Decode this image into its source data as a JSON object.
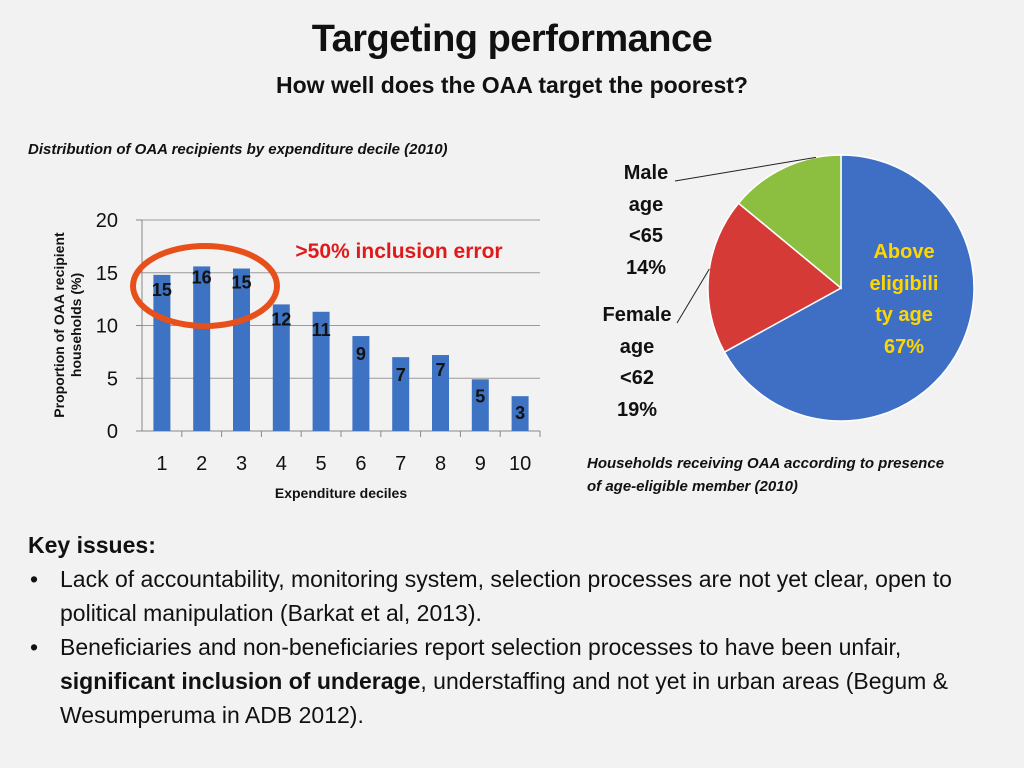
{
  "title": "Targeting performance",
  "subtitle": "How well does the OAA target the poorest?",
  "bar_caption": "Distribution of OAA recipients by expenditure  decile (2010)",
  "pie_caption_lines": [
    "Households receiving OAA according to presence",
    "of age-eligible member (2010)"
  ],
  "annotation": ">50% inclusion error",
  "colors": {
    "bar": "#3e72c2",
    "pie_blue": "#3f6fc4",
    "pie_red": "#d63a36",
    "pie_green": "#8cbf3f",
    "circle": "#e8501b",
    "annotation": "#e01a1a",
    "above_label": "#ffd700"
  },
  "chart_data": [
    {
      "type": "bar",
      "categories": [
        "1",
        "2",
        "3",
        "4",
        "5",
        "6",
        "7",
        "8",
        "9",
        "10"
      ],
      "values": [
        14.8,
        15.6,
        15.4,
        12.0,
        11.3,
        9.0,
        7.0,
        7.2,
        4.9,
        3.3
      ],
      "data_labels": [
        "15",
        "16",
        "15",
        "12",
        "11",
        "9",
        "7",
        "7",
        "5",
        "3"
      ],
      "xlabel": "Expenditure deciles",
      "ylabel_lines": [
        "Proportion of OAA recipient",
        "households (%)"
      ],
      "ylim": [
        0,
        20
      ],
      "yticks": [
        "0",
        "5",
        "10",
        "15",
        "20"
      ],
      "grid": true,
      "highlight_deciles": [
        "1",
        "2",
        "3"
      ]
    },
    {
      "type": "pie",
      "slices": [
        {
          "label_lines": [
            "Above",
            "eligibili",
            "ty age",
            "67%"
          ],
          "value": 67,
          "color": "#3f6fc4"
        },
        {
          "label_lines": [
            "Female",
            "age",
            "<62",
            "19%"
          ],
          "value": 19,
          "color": "#d63a36"
        },
        {
          "label_lines": [
            "Male",
            "age",
            "<65",
            "14%"
          ],
          "value": 14,
          "color": "#8cbf3f"
        }
      ]
    }
  ],
  "key_issues": {
    "heading": "Key issues:",
    "bullet1": "Lack of accountability, monitoring system, selection processes are not yet clear, open to political manipulation (Barkat et al, 2013).",
    "bullet2_a": "Beneficiaries and non-beneficiaries report selection processes to have been unfair, ",
    "bullet2_b": "significant inclusion of underage",
    "bullet2_c": ", understaffing and not yet in urban areas (Begum & Wesumperuma in ADB 2012)."
  }
}
